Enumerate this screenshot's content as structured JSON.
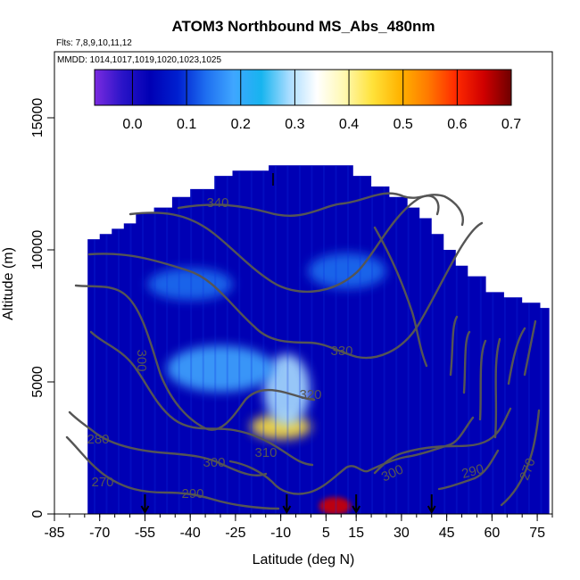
{
  "chart_data": {
    "type": "heatmap",
    "title": "ATOM3 Northbound MS_Abs_480nm",
    "notes": [
      "Flts: 7,8,9,10,11,12",
      "MMDD: 1014,1017,1019,1020,1023,1025"
    ],
    "xlabel": "Latitude (deg N)",
    "ylabel": "Altitude (m)",
    "xlim": [
      -85,
      80
    ],
    "ylim": [
      0,
      17500
    ],
    "x_ticks": [
      -85,
      -70,
      -55,
      -40,
      -25,
      -10,
      5,
      15,
      30,
      45,
      60,
      75
    ],
    "x_tick_labels": [
      "-85",
      "-70",
      "-55",
      "-40",
      "-25",
      "-10",
      "5",
      "15",
      "30",
      "45",
      "60",
      "75"
    ],
    "y_ticks": [
      0,
      5000,
      10000,
      15000
    ],
    "y_tick_labels": [
      "0",
      "5000",
      "10000",
      "15000"
    ],
    "colorbar": {
      "range": [
        -0.07,
        0.7
      ],
      "ticks": [
        0.0,
        0.1,
        0.2,
        0.3,
        0.4,
        0.5,
        0.6,
        0.7
      ],
      "tick_labels": [
        "0.0",
        "0.1",
        "0.2",
        "0.3",
        "0.4",
        "0.5",
        "0.6",
        "0.7"
      ],
      "colors": [
        "#7b2be0",
        "#2a14c8",
        "#0000b4",
        "#0020d0",
        "#1e6ef0",
        "#3fa6ff",
        "#17b4ef",
        "#a8dcff",
        "#ffffff",
        "#fff8b0",
        "#ffe23a",
        "#ffb300",
        "#ff7a00",
        "#ff2a00",
        "#d00000",
        "#6e0000"
      ]
    },
    "data_extent_top_alt": [
      [
        -74,
        10400
      ],
      [
        -70,
        10600
      ],
      [
        -66,
        10800
      ],
      [
        -62,
        11000
      ],
      [
        -58,
        11400
      ],
      [
        -52,
        11600
      ],
      [
        -46,
        12000
      ],
      [
        -40,
        12300
      ],
      [
        -32,
        12800
      ],
      [
        -26,
        13000
      ],
      [
        -14,
        13200
      ],
      [
        0,
        13200
      ],
      [
        8,
        13200
      ],
      [
        14,
        12800
      ],
      [
        20,
        12400
      ],
      [
        26,
        12000
      ],
      [
        32,
        11600
      ],
      [
        36,
        11200
      ],
      [
        40,
        10600
      ],
      [
        44,
        10000
      ],
      [
        48,
        9400
      ],
      [
        52,
        9000
      ],
      [
        58,
        8400
      ],
      [
        64,
        8200
      ],
      [
        70,
        8000
      ],
      [
        76,
        7800
      ]
    ],
    "features": [
      {
        "name": "mid-troposphere maximum",
        "lat": -10,
        "alt": 3300,
        "value": 0.45
      },
      {
        "name": "tropical tongue",
        "lat": -8,
        "alt": 4700,
        "value": 0.3
      },
      {
        "name": "southern mid-levels",
        "lat": -30,
        "alt": 5500,
        "value": 0.18
      },
      {
        "name": "southern upper band",
        "lat": -40,
        "alt": 8700,
        "value": 0.15
      },
      {
        "name": "northern upper band",
        "lat": 12,
        "alt": 9200,
        "value": 0.14
      },
      {
        "name": "tropical boundary layer",
        "lat": 8,
        "alt": 300,
        "value": 0.65
      },
      {
        "name": "southern surface band",
        "lat": -52,
        "alt": 600,
        "value": 0.05
      }
    ],
    "contour_labels": [
      "340",
      "330",
      "320",
      "310",
      "300",
      "300",
      "290",
      "280",
      "270",
      "300",
      "290",
      "270"
    ],
    "flight_arrow_latitudes": [
      -55,
      -8,
      15,
      40
    ]
  }
}
